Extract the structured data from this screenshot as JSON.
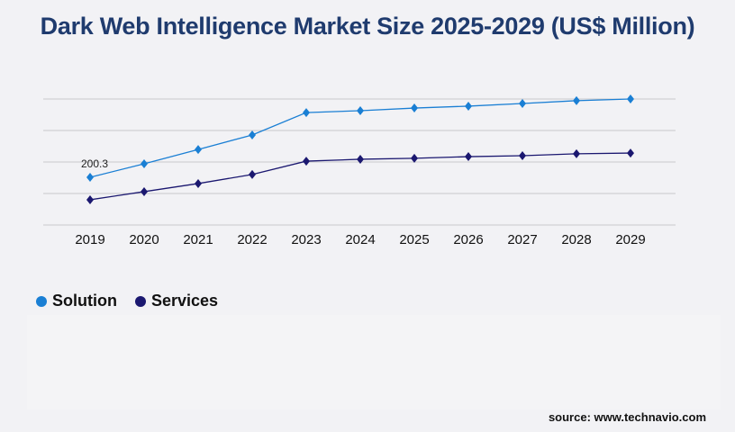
{
  "title": "Dark Web Intelligence Market Size 2025-2029 (US$ Million)",
  "source": "source: www.technavio.com",
  "chart_data": {
    "type": "line",
    "title": "Dark Web Intelligence Market Size 2025-2029 (US$ Million)",
    "categories": [
      "2019",
      "2020",
      "2021",
      "2022",
      "2023",
      "2024",
      "2025",
      "2026",
      "2027",
      "2028",
      "2029"
    ],
    "series": [
      {
        "name": "Solution",
        "color": "#1a7fd4",
        "values": [
          200.3,
          257,
          317,
          378,
          472,
          480,
          491,
          499,
          510,
          522,
          529
        ]
      },
      {
        "name": "Services",
        "color": "#1b1870",
        "values": [
          106,
          140,
          174,
          212,
          268,
          276,
          280,
          287,
          291,
          299,
          302
        ]
      }
    ],
    "data_labels": [
      {
        "series": "Solution",
        "category": "2019",
        "text": "200.3"
      }
    ],
    "ylim": [
      0,
      529
    ],
    "grid": true,
    "y_tick_labels_shown": false,
    "legend_placement": "bottom-left"
  }
}
